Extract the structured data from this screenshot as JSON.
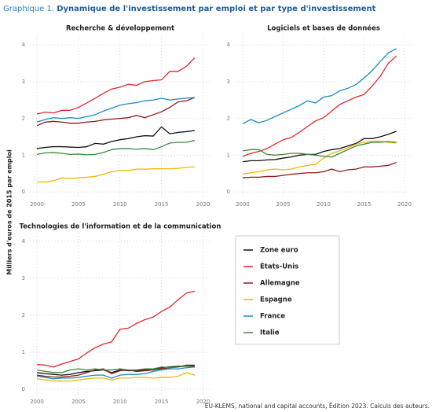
{
  "header": {
    "label": "Graphique 1.",
    "title": "Dynamique de l'investissement par emploi et par type d'investissement"
  },
  "y_label": "Milliers d'euros de 2015 par emploi",
  "source": "EU-KLEMS, national and capital accounts, Édition 2023. Calculs des auteurs.",
  "chart_data": [
    {
      "type": "line",
      "title": "Recherche & développement",
      "x": [
        2000,
        2001,
        2002,
        2003,
        2004,
        2005,
        2006,
        2007,
        2008,
        2009,
        2010,
        2011,
        2012,
        2013,
        2014,
        2015,
        2016,
        2017,
        2018,
        2019
      ],
      "xlim": [
        1999.15,
        2020.9
      ],
      "xticks": [
        2000,
        2005,
        2010,
        2015,
        2020
      ],
      "ylim": [
        -0.17,
        4.26
      ],
      "yticks": [
        0,
        1,
        2,
        3,
        4
      ],
      "grid": true,
      "series": [
        {
          "name": "Zone euro",
          "color": "#111111",
          "values": [
            1.18,
            1.21,
            1.23,
            1.23,
            1.22,
            1.21,
            1.23,
            1.32,
            1.3,
            1.37,
            1.42,
            1.45,
            1.5,
            1.53,
            1.52,
            1.77,
            1.58,
            1.62,
            1.64,
            1.67
          ]
        },
        {
          "name": "États-Unis",
          "color": "#e3262b",
          "values": [
            2.12,
            2.17,
            2.15,
            2.22,
            2.22,
            2.3,
            2.42,
            2.55,
            2.68,
            2.8,
            2.85,
            2.93,
            2.9,
            3.0,
            3.03,
            3.05,
            3.28,
            3.28,
            3.42,
            3.65
          ]
        },
        {
          "name": "Allemagne",
          "color": "#8b1a1a",
          "values": [
            1.8,
            1.9,
            1.92,
            1.9,
            1.87,
            1.87,
            1.9,
            1.92,
            1.96,
            1.98,
            2.0,
            2.02,
            2.08,
            2.02,
            2.1,
            2.18,
            2.3,
            2.45,
            2.48,
            2.57
          ]
        },
        {
          "name": "Espagne",
          "color": "#f2b705",
          "values": [
            0.27,
            0.27,
            0.3,
            0.38,
            0.37,
            0.38,
            0.4,
            0.42,
            0.48,
            0.55,
            0.58,
            0.58,
            0.62,
            0.62,
            0.63,
            0.63,
            0.63,
            0.64,
            0.67,
            0.68
          ]
        },
        {
          "name": "France",
          "color": "#1a8ac6",
          "values": [
            1.9,
            1.97,
            2.02,
            2.0,
            2.02,
            2.0,
            2.05,
            2.1,
            2.2,
            2.28,
            2.36,
            2.4,
            2.43,
            2.48,
            2.5,
            2.55,
            2.5,
            2.53,
            2.55,
            2.57
          ]
        },
        {
          "name": "Italie",
          "color": "#3a8a3a",
          "values": [
            1.02,
            1.06,
            1.07,
            1.05,
            1.02,
            1.03,
            1.01,
            1.02,
            1.07,
            1.15,
            1.18,
            1.18,
            1.16,
            1.18,
            1.15,
            1.23,
            1.33,
            1.35,
            1.35,
            1.4
          ]
        }
      ]
    },
    {
      "type": "line",
      "title": "Logiciels et bases de données",
      "x": [
        2000,
        2001,
        2002,
        2003,
        2004,
        2005,
        2006,
        2007,
        2008,
        2009,
        2010,
        2011,
        2012,
        2013,
        2014,
        2015,
        2016,
        2017,
        2018,
        2019
      ],
      "xlim": [
        1999.03,
        2020.97
      ],
      "xticks": [
        2000,
        2005,
        2010,
        2015,
        2020
      ],
      "ylim": [
        -0.17,
        4.26
      ],
      "yticks": [
        0,
        1,
        2,
        3,
        4
      ],
      "grid": true,
      "series": [
        {
          "values": [
            0.82,
            0.85,
            0.85,
            0.87,
            0.88,
            0.92,
            0.95,
            1.0,
            1.02,
            1.02,
            1.1,
            1.15,
            1.18,
            1.25,
            1.32,
            1.45,
            1.45,
            1.5,
            1.57,
            1.65
          ]
        },
        {
          "values": [
            0.97,
            1.05,
            1.1,
            1.18,
            1.3,
            1.42,
            1.48,
            1.62,
            1.78,
            1.93,
            2.02,
            2.2,
            2.38,
            2.48,
            2.58,
            2.65,
            2.88,
            3.15,
            3.5,
            3.7
          ]
        },
        {
          "values": [
            0.38,
            0.4,
            0.4,
            0.42,
            0.42,
            0.45,
            0.48,
            0.5,
            0.52,
            0.52,
            0.55,
            0.62,
            0.55,
            0.6,
            0.62,
            0.68,
            0.68,
            0.7,
            0.72,
            0.8
          ]
        },
        {
          "values": [
            0.48,
            0.52,
            0.55,
            0.6,
            0.62,
            0.6,
            0.62,
            0.68,
            0.72,
            0.75,
            0.92,
            1.05,
            1.12,
            1.2,
            1.3,
            1.35,
            1.38,
            1.38,
            1.35,
            1.33
          ]
        },
        {
          "values": [
            1.85,
            1.97,
            1.88,
            1.95,
            2.05,
            2.15,
            2.25,
            2.35,
            2.48,
            2.42,
            2.58,
            2.62,
            2.75,
            2.82,
            2.92,
            3.1,
            3.3,
            3.55,
            3.78,
            3.9
          ]
        },
        {
          "values": [
            1.12,
            1.15,
            1.15,
            1.02,
            1.0,
            1.02,
            1.05,
            1.05,
            1.02,
            1.0,
            0.97,
            0.95,
            1.05,
            1.15,
            1.25,
            1.3,
            1.35,
            1.35,
            1.37,
            1.35
          ]
        }
      ]
    },
    {
      "type": "line",
      "title": "Technologies de l'information et de la communication",
      "x": [
        2000,
        2001,
        2002,
        2003,
        2004,
        2005,
        2006,
        2007,
        2008,
        2009,
        2010,
        2011,
        2012,
        2013,
        2014,
        2015,
        2016,
        2017,
        2018,
        2019
      ],
      "xlim": [
        1999.15,
        2020.9
      ],
      "xticks": [
        2000,
        2005,
        2010,
        2015,
        2020
      ],
      "ylim": [
        -0.17,
        4.23
      ],
      "yticks": [
        0,
        1,
        2,
        3,
        4
      ],
      "grid": true,
      "series": [
        {
          "values": [
            0.45,
            0.42,
            0.4,
            0.38,
            0.4,
            0.45,
            0.48,
            0.5,
            0.52,
            0.45,
            0.52,
            0.5,
            0.5,
            0.52,
            0.55,
            0.58,
            0.6,
            0.62,
            0.62,
            0.62
          ]
        },
        {
          "values": [
            0.67,
            0.65,
            0.6,
            0.68,
            0.75,
            0.82,
            0.98,
            1.12,
            1.22,
            1.28,
            1.62,
            1.65,
            1.78,
            1.88,
            1.95,
            2.1,
            2.22,
            2.42,
            2.6,
            2.65
          ]
        },
        {
          "values": [
            0.38,
            0.35,
            0.33,
            0.33,
            0.35,
            0.38,
            0.45,
            0.52,
            0.55,
            0.42,
            0.5,
            0.52,
            0.48,
            0.5,
            0.52,
            0.55,
            0.58,
            0.6,
            0.65,
            0.65
          ]
        },
        {
          "values": [
            0.28,
            0.25,
            0.22,
            0.22,
            0.22,
            0.25,
            0.28,
            0.3,
            0.3,
            0.25,
            0.3,
            0.3,
            0.32,
            0.32,
            0.3,
            0.32,
            0.32,
            0.35,
            0.45,
            0.38
          ]
        },
        {
          "values": [
            0.35,
            0.32,
            0.28,
            0.3,
            0.3,
            0.32,
            0.35,
            0.38,
            0.38,
            0.3,
            0.38,
            0.4,
            0.4,
            0.42,
            0.48,
            0.52,
            0.55,
            0.55,
            0.58,
            0.6
          ]
        },
        {
          "values": [
            0.52,
            0.48,
            0.45,
            0.45,
            0.52,
            0.55,
            0.52,
            0.55,
            0.52,
            0.52,
            0.55,
            0.52,
            0.52,
            0.55,
            0.55,
            0.6,
            0.58,
            0.6,
            0.62,
            0.6
          ]
        }
      ]
    }
  ]
}
